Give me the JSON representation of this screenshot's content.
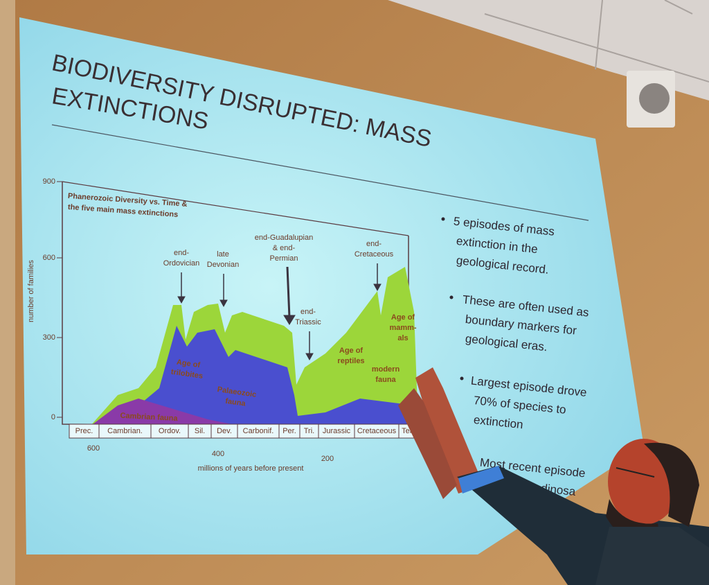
{
  "slide": {
    "title_lines": [
      "BIODIVERSITY DISRUPTED: MASS",
      "EXTINCTIONS"
    ],
    "chart": {
      "title_lines": [
        "Phanerozoic Diversity vs. Time &",
        "the five main mass extinctions"
      ],
      "y_label": "number of families",
      "y_ticks": [
        "900",
        "600",
        "300",
        "0"
      ],
      "x_ticks": [
        "600",
        "400",
        "200"
      ],
      "x_label": "millions of years before present",
      "periods": [
        "Prec.",
        "Cambrian.",
        "Ordov.",
        "Sil.",
        "Dev.",
        "Carbonif.",
        "Per.",
        "Tri.",
        "Jurassic",
        "Cretaceous",
        "Terti"
      ],
      "events": [
        [
          "end-",
          "Ordovician"
        ],
        [
          "late",
          "Devonian"
        ],
        [
          "end-Guadalupian",
          "& end-",
          "Permian"
        ],
        [
          "end-",
          "Triassic"
        ],
        [
          "end-",
          "Cretaceous"
        ]
      ],
      "fauna_labels": [
        [
          "Age of",
          "trilobites"
        ],
        [
          "Palaeozoic",
          "fauna"
        ],
        [
          "Cambrian fauna"
        ],
        [
          "Age of",
          "reptiles"
        ],
        [
          "modern",
          "fauna"
        ],
        [
          "Age of",
          "mamm-",
          "als"
        ]
      ]
    },
    "bullets": [
      [
        "5 episodes of mass",
        "extinction in the",
        "geological record."
      ],
      [
        "These are often used as",
        "boundary markers for",
        "geological eras."
      ],
      [
        "Largest episode drove",
        "70% of species to",
        "extinction"
      ],
      [
        "Most recent episode",
        "hed off the dinosa"
      ]
    ]
  }
}
